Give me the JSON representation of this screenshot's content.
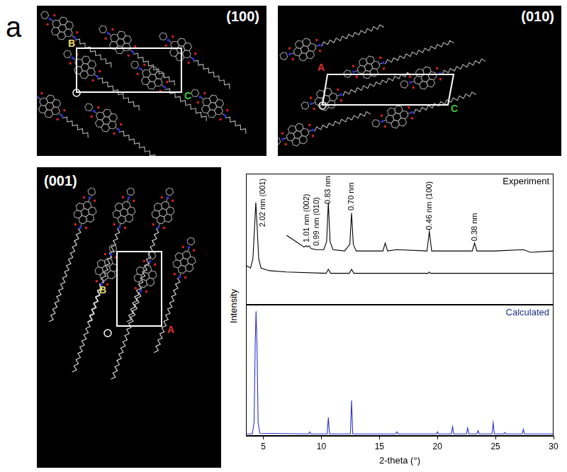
{
  "panel_label": "a",
  "structure_views": [
    {
      "title": "(100)",
      "axes": [
        {
          "label": "B",
          "color": "#e6dc6e"
        },
        {
          "label": "C",
          "color": "#3cc83c"
        }
      ]
    },
    {
      "title": "(010)",
      "axes": [
        {
          "label": "A",
          "color": "#e03030"
        },
        {
          "label": "C",
          "color": "#3cc83c"
        }
      ]
    },
    {
      "title": "(001)",
      "axes": [
        {
          "label": "B",
          "color": "#e6dc6e"
        },
        {
          "label": "A",
          "color": "#e03030"
        }
      ]
    }
  ],
  "chart_data": [
    {
      "type": "line",
      "title": "Experiment",
      "color": "#000000",
      "ylabel": "Intensity",
      "xlim": [
        3.5,
        30
      ],
      "ylim": [
        0,
        100
      ],
      "grid": false,
      "tick_labels": false,
      "series": [
        {
          "color": "#000000",
          "x": [
            3.5,
            3.9,
            4.1,
            4.25,
            4.35,
            4.45,
            4.6,
            4.8,
            5.5,
            7,
            10.4,
            10.6,
            10.8,
            12.4,
            12.6,
            12.8,
            19.2,
            19.3,
            19.4,
            30
          ],
          "values": [
            30,
            28,
            35,
            60,
            78,
            62,
            35,
            28,
            26,
            25,
            24,
            27,
            24,
            24,
            27,
            24,
            24,
            25,
            24,
            24
          ]
        },
        {
          "color": "#000000",
          "x": [
            7,
            7.5,
            8,
            8.5,
            8.7,
            8.8,
            8.95,
            9.1,
            9.5,
            10.2,
            10.45,
            10.6,
            10.75,
            11,
            12,
            12.45,
            12.6,
            12.75,
            13,
            15.3,
            15.5,
            15.7,
            16.5,
            19.1,
            19.3,
            19.5,
            20.5,
            23,
            23.2,
            23.4,
            25,
            27.4,
            28,
            30
          ],
          "values": [
            53,
            50,
            47,
            44,
            45,
            44,
            45,
            43,
            42,
            42,
            48,
            78,
            48,
            42,
            41,
            46,
            70,
            46,
            41,
            41,
            47,
            41,
            42,
            41,
            56,
            41,
            41,
            41,
            47,
            41,
            41,
            42,
            40,
            41
          ]
        }
      ],
      "annotations": [
        {
          "text": "2.02 nm (001)",
          "x": 4.35
        },
        {
          "text": "1.01 nm (002)",
          "x": 8.75
        },
        {
          "text": "0.99 nm (010)",
          "x": 8.95
        },
        {
          "text": "0.83 nm",
          "x": 10.6
        },
        {
          "text": "0.70 nm",
          "x": 12.6
        },
        {
          "text": "0.46 nm (100)",
          "x": 19.3
        },
        {
          "text": "0.38 nm",
          "x": 23.2
        }
      ]
    },
    {
      "type": "line",
      "title": "Calculated",
      "color": "#1c2f8f",
      "xlabel": "2-theta (°)",
      "xlim": [
        3.5,
        30
      ],
      "xticks": [
        5,
        10,
        15,
        20,
        25,
        30
      ],
      "ylim": [
        0,
        100
      ],
      "grid": false,
      "tick_labels": "x",
      "series": [
        {
          "color": "#2f2fd0",
          "x": [
            3.5,
            4.05,
            4.2,
            4.3,
            4.37,
            4.45,
            4.55,
            4.7,
            8.9,
            9,
            9.1,
            10.5,
            10.6,
            10.7,
            12.5,
            12.6,
            12.7,
            16.4,
            16.5,
            16.6,
            19.9,
            20,
            20.1,
            21.2,
            21.3,
            21.4,
            22.5,
            22.6,
            22.7,
            23.4,
            23.5,
            23.6,
            24.7,
            24.8,
            24.9,
            25.7,
            25.8,
            25.9,
            27.3,
            27.4,
            27.5,
            30
          ],
          "values": [
            1.5,
            1.5,
            10,
            70,
            95,
            70,
            10,
            2,
            1.5,
            3,
            1.5,
            1.5,
            14,
            1.5,
            1.5,
            27,
            1.5,
            1.5,
            3,
            1.5,
            1.5,
            3,
            1.5,
            1.5,
            7,
            1.5,
            1.5,
            6,
            1.5,
            1.5,
            4,
            1.5,
            1.5,
            10,
            1.5,
            1.5,
            2.5,
            1.5,
            1.5,
            5,
            1.5,
            1.5
          ]
        }
      ]
    }
  ]
}
